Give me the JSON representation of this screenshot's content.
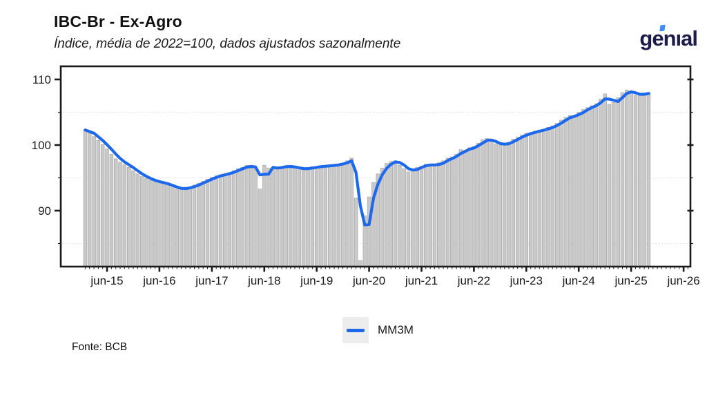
{
  "header": {
    "title": "IBC-Br - Ex-Agro",
    "subtitle": "Índice, média de 2022=100, dados ajustados sazonalmente"
  },
  "logo": {
    "text": "genıal",
    "text_color": "#1c1b4c",
    "accent_color": "#3f8cfa"
  },
  "legend": {
    "label": "MM3M"
  },
  "footer": {
    "source": "Fonte: BCB"
  },
  "chart_data": {
    "type": "bar",
    "title": "IBC-Br - Ex-Agro",
    "subtitle": "Índice, média de 2022=100, dados ajustados sazonalmente",
    "source": "Fonte: BCB",
    "categories": [
      "jan-15",
      "fev-15",
      "mar-15",
      "abr-15",
      "mai-15",
      "jun-15",
      "jul-15",
      "ago-15",
      "set-15",
      "out-15",
      "nov-15",
      "dez-15",
      "jan-16",
      "fev-16",
      "mar-16",
      "abr-16",
      "mai-16",
      "jun-16",
      "jul-16",
      "ago-16",
      "set-16",
      "out-16",
      "nov-16",
      "dez-16",
      "jan-17",
      "fev-17",
      "mar-17",
      "abr-17",
      "mai-17",
      "jun-17",
      "jul-17",
      "ago-17",
      "set-17",
      "out-17",
      "nov-17",
      "dez-17",
      "jan-18",
      "fev-18",
      "mar-18",
      "abr-18",
      "mai-18",
      "jun-18",
      "jul-18",
      "ago-18",
      "set-18",
      "out-18",
      "nov-18",
      "dez-18",
      "jan-19",
      "fev-19",
      "mar-19",
      "abr-19",
      "mai-19",
      "jun-19",
      "jul-19",
      "ago-19",
      "set-19",
      "out-19",
      "nov-19",
      "dez-19",
      "jan-20",
      "fev-20",
      "mar-20",
      "abr-20",
      "mai-20",
      "jun-20",
      "jul-20",
      "ago-20",
      "set-20",
      "out-20",
      "nov-20",
      "dez-20",
      "jan-21",
      "fev-21",
      "mar-21",
      "abr-21",
      "mai-21",
      "jun-21",
      "jul-21",
      "ago-21",
      "set-21",
      "out-21",
      "nov-21",
      "dez-21",
      "jan-22",
      "fev-22",
      "mar-22",
      "abr-22",
      "mai-22",
      "jun-22",
      "jul-22",
      "ago-22",
      "set-22",
      "out-22",
      "nov-22",
      "dez-22",
      "jan-23",
      "fev-23",
      "mar-23",
      "abr-23",
      "mai-23",
      "jun-23",
      "jul-23",
      "ago-23",
      "set-23",
      "out-23",
      "nov-23",
      "dez-23",
      "jan-24",
      "fev-24",
      "mar-24",
      "abr-24",
      "mai-24",
      "jun-24",
      "jul-24",
      "ago-24",
      "set-24",
      "out-24",
      "nov-24",
      "dez-24",
      "jan-25",
      "fev-25",
      "mar-25",
      "abr-25",
      "mai-25",
      "jun-25",
      "jul-25",
      "ago-25",
      "set-25",
      "out-25"
    ],
    "values": [
      102.3,
      101.8,
      101.3,
      100.7,
      100.1,
      99.4,
      98.6,
      97.9,
      97.4,
      97.0,
      96.6,
      96.1,
      95.6,
      95.2,
      94.9,
      94.6,
      94.4,
      94.3,
      94.1,
      93.9,
      93.6,
      93.3,
      93.3,
      93.5,
      93.6,
      93.9,
      94.2,
      94.5,
      94.8,
      95.1,
      95.3,
      95.5,
      95.6,
      95.8,
      96.1,
      96.4,
      96.6,
      96.9,
      96.7,
      96.4,
      93.3,
      96.9,
      96.5,
      96.4,
      96.6,
      96.7,
      96.8,
      96.7,
      96.5,
      96.4,
      96.3,
      96.5,
      96.7,
      96.6,
      96.8,
      96.9,
      96.8,
      97.0,
      97.1,
      97.2,
      97.6,
      98.0,
      91.9,
      82.4,
      89.2,
      92.1,
      94.3,
      95.6,
      96.5,
      97.2,
      97.5,
      97.6,
      96.9,
      96.4,
      95.9,
      96.3,
      96.6,
      96.8,
      97.1,
      97.0,
      96.8,
      97.3,
      97.6,
      98.0,
      98.2,
      98.6,
      99.3,
      99.2,
      99.6,
      99.8,
      100.3,
      100.8,
      101.0,
      100.5,
      100.2,
      100.0,
      100.2,
      100.4,
      100.9,
      101.2,
      101.5,
      101.8,
      101.9,
      102.1,
      102.3,
      102.4,
      102.7,
      102.9,
      103.3,
      103.8,
      104.2,
      104.5,
      104.4,
      105.0,
      105.4,
      105.7,
      106.0,
      106.3,
      107.0,
      107.8,
      106.2,
      106.5,
      107.2,
      108.0,
      108.4,
      107.9,
      107.6,
      107.7,
      107.9,
      108.0
    ],
    "overlay_line": {
      "name": "MM3M",
      "type": "line",
      "definition": "média móvel de 3 meses (trailing 3-month moving average of the bar values)",
      "color": "#1e69eb"
    },
    "x_tick_labels": [
      "jun-15",
      "jun-16",
      "jun-17",
      "jun-18",
      "jun-19",
      "jun-20",
      "jun-21",
      "jun-22",
      "jun-23",
      "jun-24",
      "jun-25",
      "jun-26"
    ],
    "y_ticks": [
      110,
      100,
      90
    ],
    "y_minor_ticks": [
      105,
      95,
      85
    ],
    "ylim": [
      81.5,
      112
    ],
    "grid": "dotted horizontal minor gridlines only",
    "legend_position": "bottom-center",
    "colors": {
      "bar_fill": "#c9c9c9",
      "bar_stroke": "#a9a9a9",
      "line": "#1e69eb",
      "frame": "#1a1a1a",
      "gridline": "#dedede",
      "tick_label": "#1a1a1a",
      "legend_swatch_bg": "#ededed"
    }
  }
}
